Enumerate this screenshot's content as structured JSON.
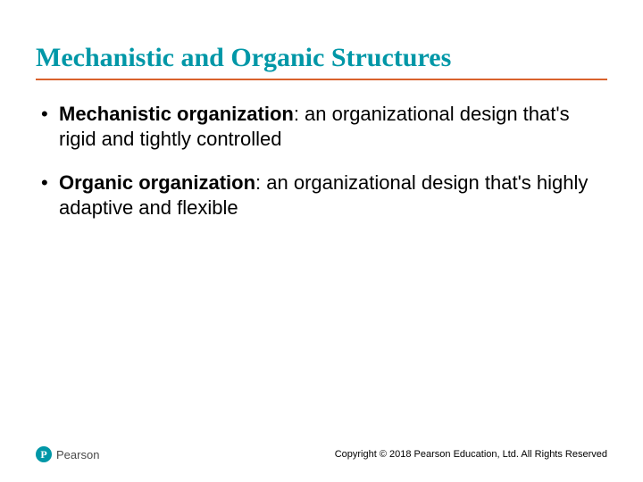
{
  "slide": {
    "title": "Mechanistic and Organic Structures",
    "title_color": "#0097a7",
    "title_underline_color": "#d9622d",
    "title_fontsize": 30,
    "bullets": [
      {
        "term": "Mechanistic organization",
        "definition": ": an organizational design that's rigid and tightly controlled"
      },
      {
        "term": "Organic organization",
        "definition": ": an organizational design that's highly adaptive and flexible"
      }
    ],
    "body_fontsize": 22,
    "body_color": "#000000"
  },
  "footer": {
    "logo_text": "Pearson",
    "logo_mark_color": "#0097a7",
    "copyright": "Copyright © 2018 Pearson Education, Ltd. All Rights Reserved",
    "copyright_fontsize": 11
  },
  "background_color": "#ffffff"
}
